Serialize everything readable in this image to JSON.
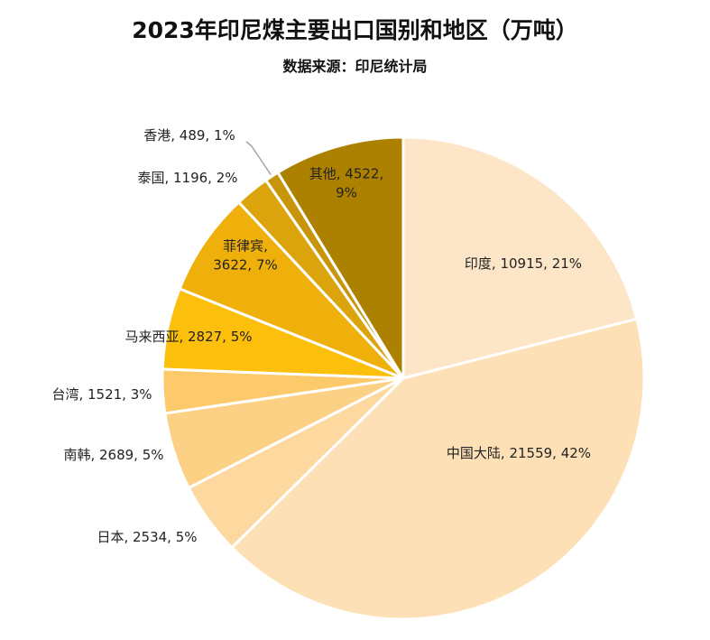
{
  "chart_data": {
    "type": "pie",
    "title": "2023年印尼煤主要出口国别和地区（万吨）",
    "subtitle": "数据来源：印尼统计局",
    "unit": "万吨",
    "slices": [
      {
        "name": "印度",
        "value": 10915,
        "percent": "21%",
        "color": "#fde6c8",
        "label": "印度, 10915, 21%"
      },
      {
        "name": "中国大陆",
        "value": 21559,
        "percent": "42%",
        "color": "#fde0b6",
        "label": "中国大陆, 21559, 42%"
      },
      {
        "name": "日本",
        "value": 2534,
        "percent": "5%",
        "color": "#fdd9a0",
        "label": "日本, 2534, 5%"
      },
      {
        "name": "南韩",
        "value": 2689,
        "percent": "5%",
        "color": "#fdd185",
        "label": "南韩, 2689, 5%"
      },
      {
        "name": "台湾",
        "value": 1521,
        "percent": "3%",
        "color": "#fcc96b",
        "label": "台湾, 1521, 3%"
      },
      {
        "name": "马来西亚",
        "value": 2827,
        "percent": "5%",
        "color": "#fbbf0c",
        "label": "马来西亚, 2827, 5%"
      },
      {
        "name": "菲律宾",
        "value": 3622,
        "percent": "7%",
        "color": "#efb00c",
        "label_lines": [
          "菲律宾,",
          "3622, 7%"
        ]
      },
      {
        "name": "泰国",
        "value": 1196,
        "percent": "2%",
        "color": "#dca40c",
        "label": "泰国, 1196, 2%"
      },
      {
        "name": "香港",
        "value": 489,
        "percent": "1%",
        "color": "#c8950a",
        "label": "香港, 489, 1%"
      },
      {
        "name": "其他",
        "value": 4522,
        "percent": "9%",
        "color": "#ad8100",
        "label_lines": [
          "其他, 4522,",
          "9%"
        ]
      }
    ]
  }
}
